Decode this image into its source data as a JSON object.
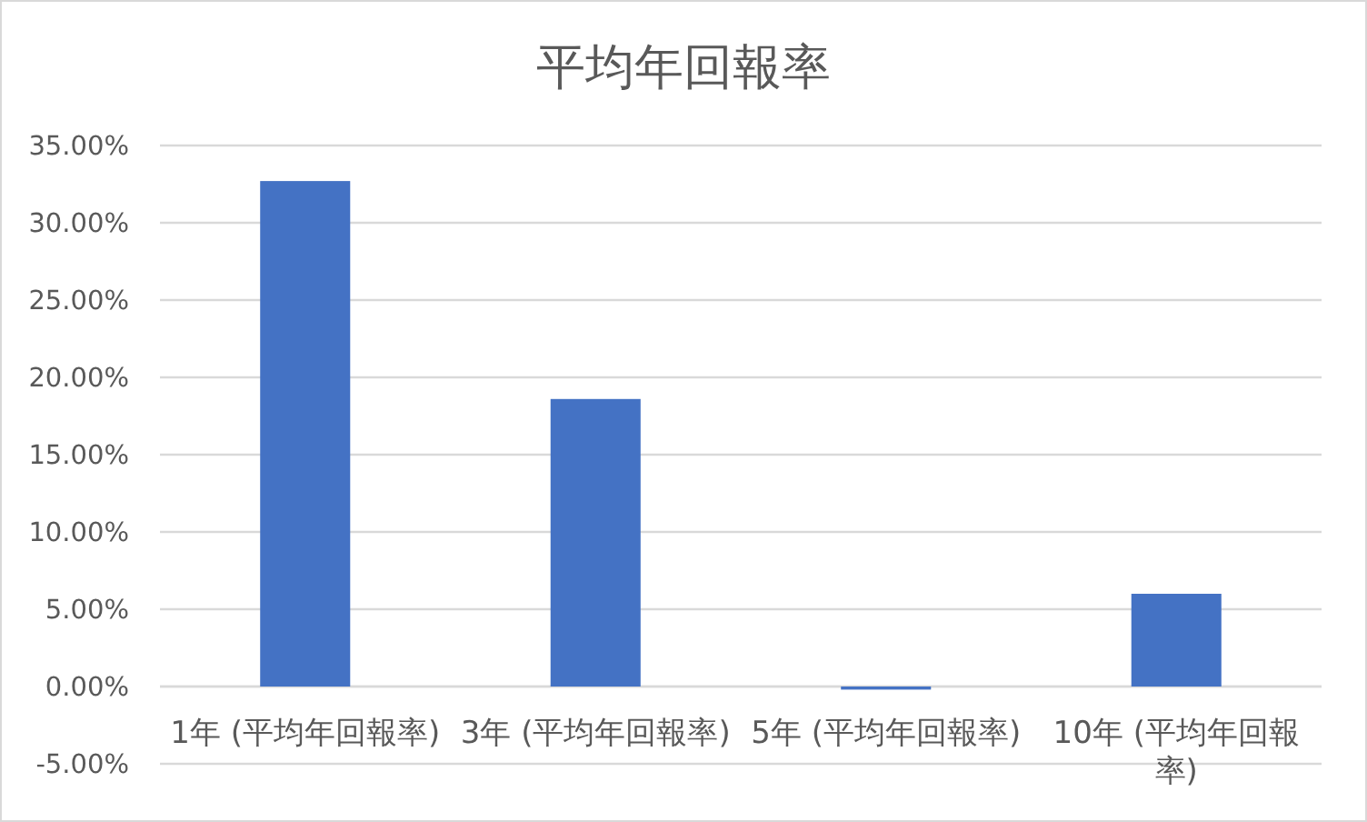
{
  "chart_data": {
    "type": "bar",
    "title": "平均年回報率",
    "categories": [
      "1年 (平均年回報率)",
      "3年 (平均年回報率)",
      "5年 (平均年回報率)",
      "10年 (平均年回報率)"
    ],
    "values": [
      32.7,
      18.6,
      -0.2,
      6.0
    ],
    "color": "#4472c4",
    "ylim": [
      -5,
      35
    ],
    "yticks": [
      {
        "value": -5,
        "label": "-5.00%"
      },
      {
        "value": 0,
        "label": "0.00%"
      },
      {
        "value": 5,
        "label": "5.00%"
      },
      {
        "value": 10,
        "label": "10.00%"
      },
      {
        "value": 15,
        "label": "15.00%"
      },
      {
        "value": 20,
        "label": "20.00%"
      },
      {
        "value": 25,
        "label": "25.00%"
      },
      {
        "value": 30,
        "label": "30.00%"
      },
      {
        "value": 35,
        "label": "35.00%"
      }
    ],
    "grid": "y"
  }
}
